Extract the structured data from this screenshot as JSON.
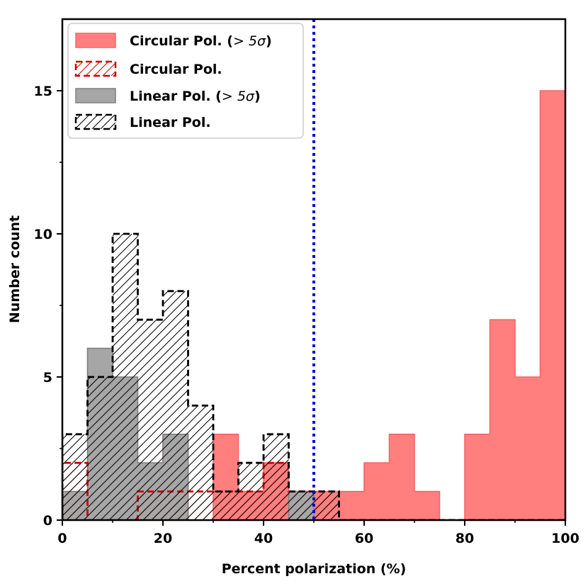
{
  "chart_data": {
    "type": "histogram",
    "xlabel": "Percent polarization (%)",
    "ylabel": "Number count",
    "xlim": [
      0,
      100
    ],
    "ylim": [
      0,
      17.5
    ],
    "x_ticks": [
      0,
      20,
      40,
      60,
      80,
      100
    ],
    "y_ticks": [
      0,
      5,
      10,
      15
    ],
    "x_tick_labels": [
      "0",
      "20",
      "40",
      "60",
      "80",
      "100"
    ],
    "y_tick_labels": [
      "0",
      "5",
      "10",
      "15"
    ],
    "bin_edges": [
      0,
      5,
      10,
      15,
      20,
      25,
      30,
      35,
      40,
      45,
      50,
      55,
      60,
      65,
      70,
      75,
      80,
      85,
      90,
      95,
      100
    ],
    "series": [
      {
        "name": "Circular Pol. (> 5σ)",
        "legend_main": "Circular Pol. (",
        "legend_math": "> 5σ",
        "legend_close": ")",
        "style": "filled",
        "color": "#ff7f7f",
        "edge_color": "#f26666",
        "counts": [
          0,
          0,
          0,
          0,
          3,
          0,
          3,
          1,
          2,
          1,
          1,
          1,
          2,
          3,
          1,
          0,
          3,
          7,
          5,
          15
        ]
      },
      {
        "name": "Circular Pol.",
        "legend_main": "Circular Pol.",
        "style": "hatched-dashed",
        "color": "#cc0000",
        "counts": [
          2,
          0,
          0,
          1,
          1,
          1,
          1,
          1,
          2,
          1,
          1,
          0,
          0,
          0,
          0,
          0,
          0,
          0,
          0,
          0
        ]
      },
      {
        "name": "Linear Pol. (> 5σ)",
        "legend_main": "Linear Pol. (",
        "legend_math": "> 5σ",
        "legend_close": ")",
        "style": "filled",
        "color": "#a6a6a6",
        "edge_color": "#808080",
        "counts": [
          1,
          6,
          5,
          2,
          3,
          0,
          0,
          0,
          0,
          1,
          0,
          0,
          0,
          0,
          0,
          0,
          0,
          0,
          0,
          0
        ]
      },
      {
        "name": "Linear Pol.",
        "legend_main": "Linear Pol.",
        "style": "hatched-dashed",
        "color": "#000000",
        "counts": [
          3,
          5,
          10,
          7,
          8,
          4,
          1,
          2,
          3,
          1,
          1,
          0,
          0,
          0,
          0,
          0,
          0,
          0,
          0,
          0
        ]
      }
    ],
    "reference_line": {
      "x": 50,
      "style": "dotted",
      "color": "#0000dd"
    },
    "legend_location": "upper-left"
  }
}
